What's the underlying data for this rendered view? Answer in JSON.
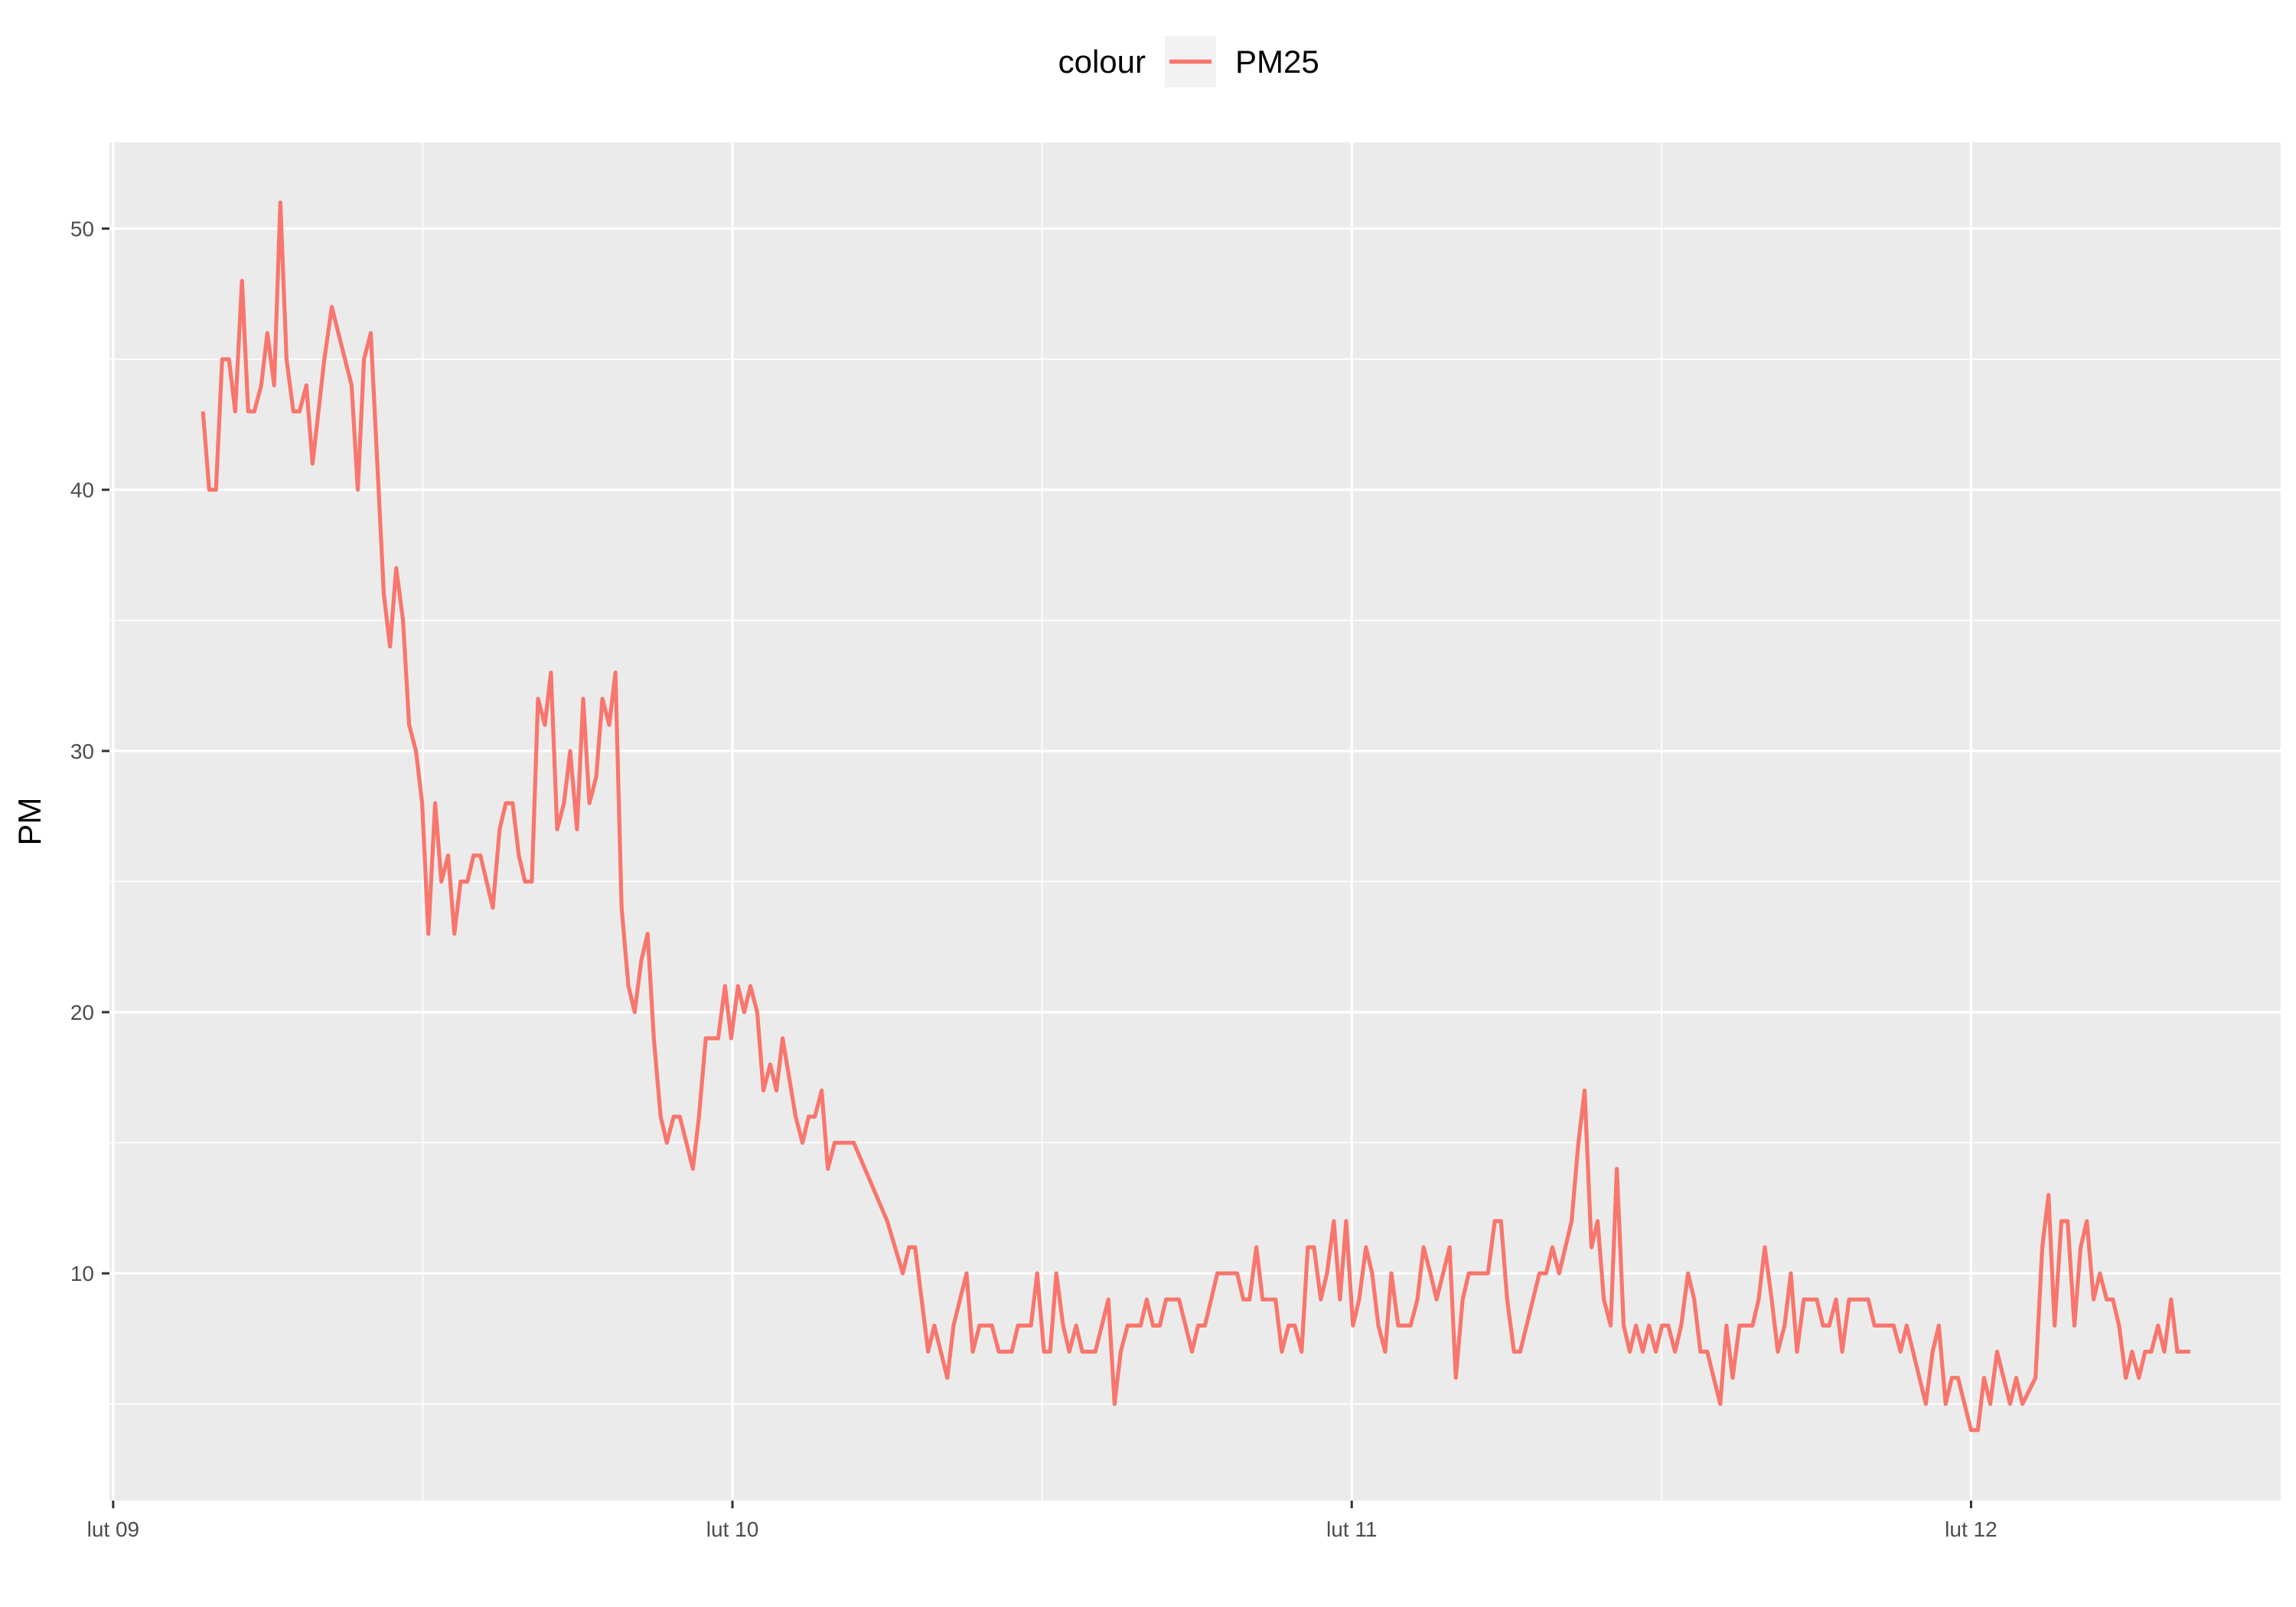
{
  "chart_data": {
    "type": "line",
    "title": "",
    "xlabel": "",
    "ylabel": "PM",
    "legend": {
      "title": "colour",
      "position": "top",
      "entries": [
        "PM25"
      ]
    },
    "x_unit": "days",
    "x_ticks": [
      {
        "value": 0,
        "label": "lut 09"
      },
      {
        "value": 1,
        "label": "lut 10"
      },
      {
        "value": 2,
        "label": "lut 11"
      },
      {
        "value": 3,
        "label": "lut 12"
      }
    ],
    "y_ticks": [
      10,
      20,
      30,
      40,
      50
    ],
    "xlim": [
      -0.006,
      3.5
    ],
    "ylim": [
      1.3,
      53.3
    ],
    "grid": true,
    "colors": {
      "panel": "#ebebeb",
      "grid": "#ffffff",
      "series": "#f8766d",
      "legend_key": "#f2f2f2"
    },
    "series": [
      {
        "name": "PM25",
        "points": [
          [
            0.145,
            43
          ],
          [
            0.155,
            40
          ],
          [
            0.166,
            40
          ],
          [
            0.176,
            45
          ],
          [
            0.187,
            45
          ],
          [
            0.197,
            43
          ],
          [
            0.208,
            48
          ],
          [
            0.218,
            43
          ],
          [
            0.228,
            43
          ],
          [
            0.239,
            44
          ],
          [
            0.249,
            46
          ],
          [
            0.26,
            44
          ],
          [
            0.27,
            51
          ],
          [
            0.28,
            45
          ],
          [
            0.291,
            43
          ],
          [
            0.301,
            43
          ],
          [
            0.312,
            44
          ],
          [
            0.322,
            41
          ],
          [
            0.341,
            45
          ],
          [
            0.353,
            47
          ],
          [
            0.385,
            44
          ],
          [
            0.395,
            40
          ],
          [
            0.405,
            45
          ],
          [
            0.416,
            46
          ],
          [
            0.437,
            36
          ],
          [
            0.447,
            34
          ],
          [
            0.457,
            37
          ],
          [
            0.468,
            35
          ],
          [
            0.478,
            31
          ],
          [
            0.489,
            30
          ],
          [
            0.499,
            28
          ],
          [
            0.509,
            23
          ],
          [
            0.52,
            28
          ],
          [
            0.53,
            25
          ],
          [
            0.541,
            26
          ],
          [
            0.551,
            23
          ],
          [
            0.561,
            25
          ],
          [
            0.572,
            25
          ],
          [
            0.582,
            26
          ],
          [
            0.593,
            26
          ],
          [
            0.613,
            24
          ],
          [
            0.624,
            27
          ],
          [
            0.634,
            28
          ],
          [
            0.645,
            28
          ],
          [
            0.655,
            26
          ],
          [
            0.665,
            25
          ],
          [
            0.676,
            25
          ],
          [
            0.686,
            32
          ],
          [
            0.697,
            31
          ],
          [
            0.707,
            33
          ],
          [
            0.717,
            27
          ],
          [
            0.728,
            28
          ],
          [
            0.738,
            30
          ],
          [
            0.749,
            27
          ],
          [
            0.759,
            32
          ],
          [
            0.769,
            28
          ],
          [
            0.78,
            29
          ],
          [
            0.79,
            32
          ],
          [
            0.801,
            31
          ],
          [
            0.811,
            33
          ],
          [
            0.821,
            24
          ],
          [
            0.832,
            21
          ],
          [
            0.842,
            20
          ],
          [
            0.853,
            22
          ],
          [
            0.863,
            23
          ],
          [
            0.873,
            19
          ],
          [
            0.884,
            16
          ],
          [
            0.894,
            15
          ],
          [
            0.905,
            16
          ],
          [
            0.915,
            16
          ],
          [
            0.936,
            14
          ],
          [
            0.946,
            16
          ],
          [
            0.957,
            19
          ],
          [
            0.967,
            19
          ],
          [
            0.977,
            19
          ],
          [
            0.988,
            21
          ],
          [
            0.998,
            19
          ],
          [
            1.009,
            21
          ],
          [
            1.019,
            20
          ],
          [
            1.029,
            21
          ],
          [
            1.04,
            20
          ],
          [
            1.05,
            17
          ],
          [
            1.061,
            18
          ],
          [
            1.071,
            17
          ],
          [
            1.081,
            19
          ],
          [
            1.102,
            16
          ],
          [
            1.113,
            15
          ],
          [
            1.123,
            16
          ],
          [
            1.133,
            16
          ],
          [
            1.144,
            17
          ],
          [
            1.154,
            14
          ],
          [
            1.165,
            15
          ],
          [
            1.175,
            15
          ],
          [
            1.185,
            15
          ],
          [
            1.196,
            15
          ],
          [
            1.25,
            12
          ],
          [
            1.275,
            10
          ],
          [
            1.285,
            11
          ],
          [
            1.295,
            11
          ],
          [
            1.316,
            7
          ],
          [
            1.326,
            8
          ],
          [
            1.347,
            6
          ],
          [
            1.357,
            8
          ],
          [
            1.378,
            10
          ],
          [
            1.388,
            7
          ],
          [
            1.399,
            8
          ],
          [
            1.409,
            8
          ],
          [
            1.419,
            8
          ],
          [
            1.43,
            7
          ],
          [
            1.44,
            7
          ],
          [
            1.451,
            7
          ],
          [
            1.461,
            8
          ],
          [
            1.471,
            8
          ],
          [
            1.482,
            8
          ],
          [
            1.492,
            10
          ],
          [
            1.503,
            7
          ],
          [
            1.513,
            7
          ],
          [
            1.523,
            10
          ],
          [
            1.534,
            8
          ],
          [
            1.544,
            7
          ],
          [
            1.555,
            8
          ],
          [
            1.565,
            7
          ],
          [
            1.575,
            7
          ],
          [
            1.586,
            7
          ],
          [
            1.607,
            9
          ],
          [
            1.617,
            5
          ],
          [
            1.627,
            7
          ],
          [
            1.638,
            8
          ],
          [
            1.648,
            8
          ],
          [
            1.659,
            8
          ],
          [
            1.669,
            9
          ],
          [
            1.679,
            8
          ],
          [
            1.69,
            8
          ],
          [
            1.7,
            9
          ],
          [
            1.711,
            9
          ],
          [
            1.721,
            9
          ],
          [
            1.742,
            7
          ],
          [
            1.752,
            8
          ],
          [
            1.763,
            8
          ],
          [
            1.783,
            10
          ],
          [
            1.794,
            10
          ],
          [
            1.804,
            10
          ],
          [
            1.815,
            10
          ],
          [
            1.825,
            9
          ],
          [
            1.835,
            9
          ],
          [
            1.846,
            11
          ],
          [
            1.856,
            9
          ],
          [
            1.867,
            9
          ],
          [
            1.877,
            9
          ],
          [
            1.887,
            7
          ],
          [
            1.898,
            8
          ],
          [
            1.908,
            8
          ],
          [
            1.919,
            7
          ],
          [
            1.929,
            11
          ],
          [
            1.939,
            11
          ],
          [
            1.95,
            9
          ],
          [
            1.96,
            10
          ],
          [
            1.971,
            12
          ],
          [
            1.981,
            9
          ],
          [
            1.991,
            12
          ],
          [
            2.002,
            8
          ],
          [
            2.012,
            9
          ],
          [
            2.023,
            11
          ],
          [
            2.033,
            10
          ],
          [
            2.043,
            8
          ],
          [
            2.054,
            7
          ],
          [
            2.064,
            10
          ],
          [
            2.075,
            8
          ],
          [
            2.085,
            8
          ],
          [
            2.095,
            8
          ],
          [
            2.106,
            9
          ],
          [
            2.116,
            11
          ],
          [
            2.127,
            10
          ],
          [
            2.137,
            9
          ],
          [
            2.158,
            11
          ],
          [
            2.168,
            6
          ],
          [
            2.179,
            9
          ],
          [
            2.189,
            10
          ],
          [
            2.199,
            10
          ],
          [
            2.21,
            10
          ],
          [
            2.22,
            10
          ],
          [
            2.231,
            12
          ],
          [
            2.241,
            12
          ],
          [
            2.251,
            9
          ],
          [
            2.262,
            7
          ],
          [
            2.272,
            7
          ],
          [
            2.303,
            10
          ],
          [
            2.314,
            10
          ],
          [
            2.324,
            11
          ],
          [
            2.335,
            10
          ],
          [
            2.355,
            12
          ],
          [
            2.366,
            15
          ],
          [
            2.376,
            17
          ],
          [
            2.387,
            11
          ],
          [
            2.397,
            12
          ],
          [
            2.407,
            9
          ],
          [
            2.418,
            8
          ],
          [
            2.428,
            14
          ],
          [
            2.439,
            8
          ],
          [
            2.449,
            7
          ],
          [
            2.459,
            8
          ],
          [
            2.47,
            7
          ],
          [
            2.48,
            8
          ],
          [
            2.491,
            7
          ],
          [
            2.501,
            8
          ],
          [
            2.511,
            8
          ],
          [
            2.522,
            7
          ],
          [
            2.532,
            8
          ],
          [
            2.543,
            10
          ],
          [
            2.553,
            9
          ],
          [
            2.563,
            7
          ],
          [
            2.574,
            7
          ],
          [
            2.595,
            5
          ],
          [
            2.605,
            8
          ],
          [
            2.615,
            6
          ],
          [
            2.626,
            8
          ],
          [
            2.636,
            8
          ],
          [
            2.647,
            8
          ],
          [
            2.657,
            9
          ],
          [
            2.667,
            11
          ],
          [
            2.678,
            9
          ],
          [
            2.688,
            7
          ],
          [
            2.699,
            8
          ],
          [
            2.709,
            10
          ],
          [
            2.719,
            7
          ],
          [
            2.73,
            9
          ],
          [
            2.74,
            9
          ],
          [
            2.751,
            9
          ],
          [
            2.761,
            8
          ],
          [
            2.771,
            8
          ],
          [
            2.782,
            9
          ],
          [
            2.792,
            7
          ],
          [
            2.803,
            9
          ],
          [
            2.813,
            9
          ],
          [
            2.823,
            9
          ],
          [
            2.834,
            9
          ],
          [
            2.844,
            8
          ],
          [
            2.855,
            8
          ],
          [
            2.865,
            8
          ],
          [
            2.875,
            8
          ],
          [
            2.886,
            7
          ],
          [
            2.896,
            8
          ],
          [
            2.927,
            5
          ],
          [
            2.938,
            7
          ],
          [
            2.948,
            8
          ],
          [
            2.959,
            5
          ],
          [
            2.969,
            6
          ],
          [
            2.979,
            6
          ],
          [
            3.0,
            4
          ],
          [
            3.011,
            4
          ],
          [
            3.021,
            6
          ],
          [
            3.031,
            5
          ],
          [
            3.042,
            7
          ],
          [
            3.063,
            5
          ],
          [
            3.073,
            6
          ],
          [
            3.083,
            5
          ],
          [
            3.104,
            6
          ],
          [
            3.115,
            11
          ],
          [
            3.125,
            13
          ],
          [
            3.135,
            8
          ],
          [
            3.146,
            12
          ],
          [
            3.156,
            12
          ],
          [
            3.167,
            8
          ],
          [
            3.177,
            11
          ],
          [
            3.187,
            12
          ],
          [
            3.198,
            9
          ],
          [
            3.208,
            10
          ],
          [
            3.219,
            9
          ],
          [
            3.229,
            9
          ],
          [
            3.239,
            8
          ],
          [
            3.25,
            6
          ],
          [
            3.26,
            7
          ],
          [
            3.271,
            6
          ],
          [
            3.281,
            7
          ],
          [
            3.291,
            7
          ],
          [
            3.302,
            8
          ],
          [
            3.312,
            7
          ],
          [
            3.323,
            9
          ],
          [
            3.333,
            7
          ],
          [
            3.343,
            7
          ],
          [
            3.354,
            7
          ]
        ]
      }
    ]
  }
}
